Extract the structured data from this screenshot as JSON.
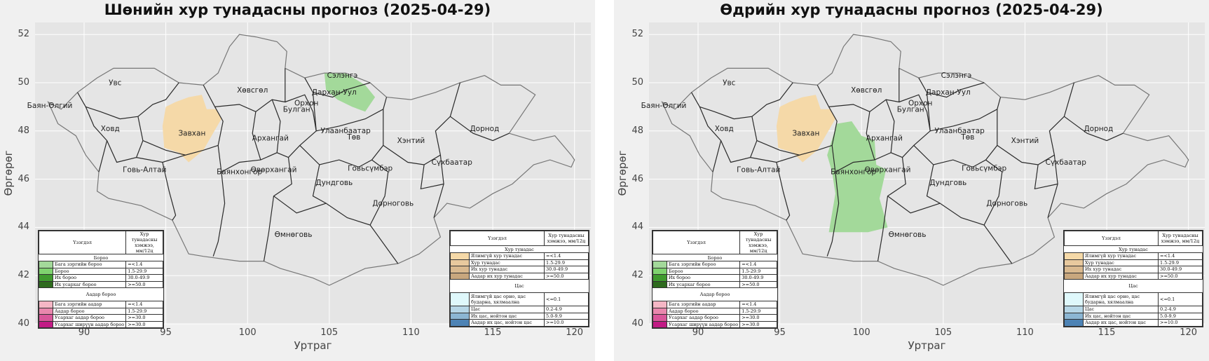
{
  "panels": [
    {
      "title": "Шөнийн хур тунадасны прогноз (2025-04-29)",
      "variant": "night"
    },
    {
      "title": "Өдрийн хур тунадасны прогноз (2025-04-29)",
      "variant": "day"
    }
  ],
  "axes": {
    "xlabel": "Уртраг",
    "ylabel": "Өргөрөг",
    "xticks": [
      "90",
      "95",
      "100",
      "105",
      "110",
      "115",
      "120"
    ],
    "yticks": [
      "52",
      "50",
      "48",
      "46",
      "44",
      "42",
      "40"
    ],
    "xlim": [
      87,
      121
    ],
    "ylim": [
      40,
      52.5
    ]
  },
  "provinces": [
    {
      "name": "Увс",
      "lon": 91.9,
      "lat": 49.9
    },
    {
      "name": "Баян-Өлгий",
      "lon": 87.9,
      "lat": 48.95
    },
    {
      "name": "Ховд",
      "lon": 91.6,
      "lat": 48.0
    },
    {
      "name": "Завхан",
      "lon": 96.6,
      "lat": 47.8
    },
    {
      "name": "Говь-Алтай",
      "lon": 93.7,
      "lat": 46.3
    },
    {
      "name": "Хөвсгөл",
      "lon": 100.3,
      "lat": 49.6
    },
    {
      "name": "Архангай",
      "lon": 101.4,
      "lat": 47.6
    },
    {
      "name": "Баянхонгор",
      "lon": 99.5,
      "lat": 46.2
    },
    {
      "name": "Өвөрхангай",
      "lon": 101.6,
      "lat": 46.3
    },
    {
      "name": "Булган",
      "lon": 103.0,
      "lat": 48.8
    },
    {
      "name": "Орхон",
      "lon": 103.6,
      "lat": 49.05
    },
    {
      "name": "Сэлэнгэ",
      "lon": 105.8,
      "lat": 50.2
    },
    {
      "name": "Дархан-Уул",
      "lon": 105.3,
      "lat": 49.5
    },
    {
      "name": "Улаанбаатар",
      "lon": 106.0,
      "lat": 47.9
    },
    {
      "name": "Төв",
      "lon": 106.5,
      "lat": 47.65
    },
    {
      "name": "Хэнтий",
      "lon": 110.0,
      "lat": 47.5
    },
    {
      "name": "Дорнод",
      "lon": 114.5,
      "lat": 48.0
    },
    {
      "name": "Сүхбаатар",
      "lon": 112.5,
      "lat": 46.6
    },
    {
      "name": "Говьсүмбэр",
      "lon": 107.5,
      "lat": 46.35
    },
    {
      "name": "Дундговь",
      "lon": 105.3,
      "lat": 45.75
    },
    {
      "name": "Дорноговь",
      "lon": 108.9,
      "lat": 44.9
    },
    {
      "name": "Өмнөговь",
      "lon": 102.8,
      "lat": 43.6
    }
  ],
  "legend_left": {
    "header_1": "Үзэгдэл",
    "header_2": "Хур тунадасны хэмжээ, мм/12ц",
    "section_rain": "Бороо",
    "rain": [
      {
        "color": "#a3d99a",
        "label": "Бага зэргийн бороо",
        "range": "=<1.4"
      },
      {
        "color": "#7fd36f",
        "label": "Бороо",
        "range": "1.5-29.9"
      },
      {
        "color": "#3f9a2e",
        "label": "Их бороо",
        "range": "30.0-49.9"
      },
      {
        "color": "#2e6b1e",
        "label": "Их усархаг бороо",
        "range": ">=50.0"
      }
    ],
    "section_shower": "Аадар бороо",
    "shower": [
      {
        "color": "#f5b6c5",
        "label": "Бага зэргийн аадар",
        "range": "=<1.4"
      },
      {
        "color": "#e987ad",
        "label": "Аадар бороо",
        "range": "1.5-29.9"
      },
      {
        "color": "#d9569a",
        "label": "Усархаг аадар бороо",
        "range": ">=30.0"
      },
      {
        "color": "#c21b85",
        "label": "Усархаг ширүүн аадар бороо",
        "range": ">=30.0"
      }
    ]
  },
  "legend_right": {
    "header_1": "Үзэгдэл",
    "header_2": "Хур тунадасны хэмжээ, мм/12ц",
    "section_mixed": "Хур тунадас",
    "mixed": [
      {
        "color": "#f5d9a8",
        "label": "Ялимгүй хур тунадас",
        "range": "=<1.4"
      },
      {
        "color": "#e8c99e",
        "label": "Хур тунадас",
        "range": "1.5-29.9"
      },
      {
        "color": "#d9b98f",
        "label": "Их хур тунадас",
        "range": "30.0-49.9"
      },
      {
        "color": "#c8a77e",
        "label": "Аадар их хур тунадас",
        "range": ">=50.0"
      }
    ],
    "section_snow": "Цас",
    "snow": [
      {
        "color": "#dff8fb",
        "label": "Ялимгүй цас орно, цас бударна, хялмаална",
        "range": "<=0.1"
      },
      {
        "color": "#b6d6e6",
        "label": "Цас",
        "range": "0.2-4.9"
      },
      {
        "color": "#8cb6d3",
        "label": "Их цас, нойтон цас",
        "range": "5.0-9.9"
      },
      {
        "color": "#4d83b5",
        "label": "Аадар их цас, нойтон цас",
        "range": ">=10.0"
      }
    ]
  },
  "colors": {
    "plot_bg": "#e5e5e5",
    "grid": "#ffffff",
    "border": "#2a2a2a",
    "outline": "#777777",
    "light_mixed": "#f5d9a8",
    "light_rain": "#a3d99a"
  }
}
